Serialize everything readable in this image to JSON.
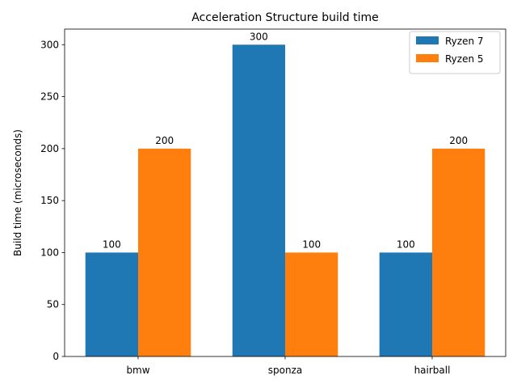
{
  "chart_data": {
    "type": "bar",
    "title": "Acceleration Structure build time",
    "xlabel": "",
    "ylabel": "Build time (microseconds)",
    "categories": [
      "bmw",
      "sponza",
      "hairball"
    ],
    "series": [
      {
        "name": "Ryzen 7",
        "values": [
          100,
          300,
          100
        ],
        "color": "#1f77b4"
      },
      {
        "name": "Ryzen 5",
        "values": [
          200,
          100,
          200
        ],
        "color": "#ff7f0e"
      }
    ],
    "ylim": [
      0,
      315
    ],
    "yticks": [
      0,
      50,
      100,
      150,
      200,
      250,
      300
    ],
    "grid": false,
    "legend_position": "top-right",
    "data_labels": true
  }
}
